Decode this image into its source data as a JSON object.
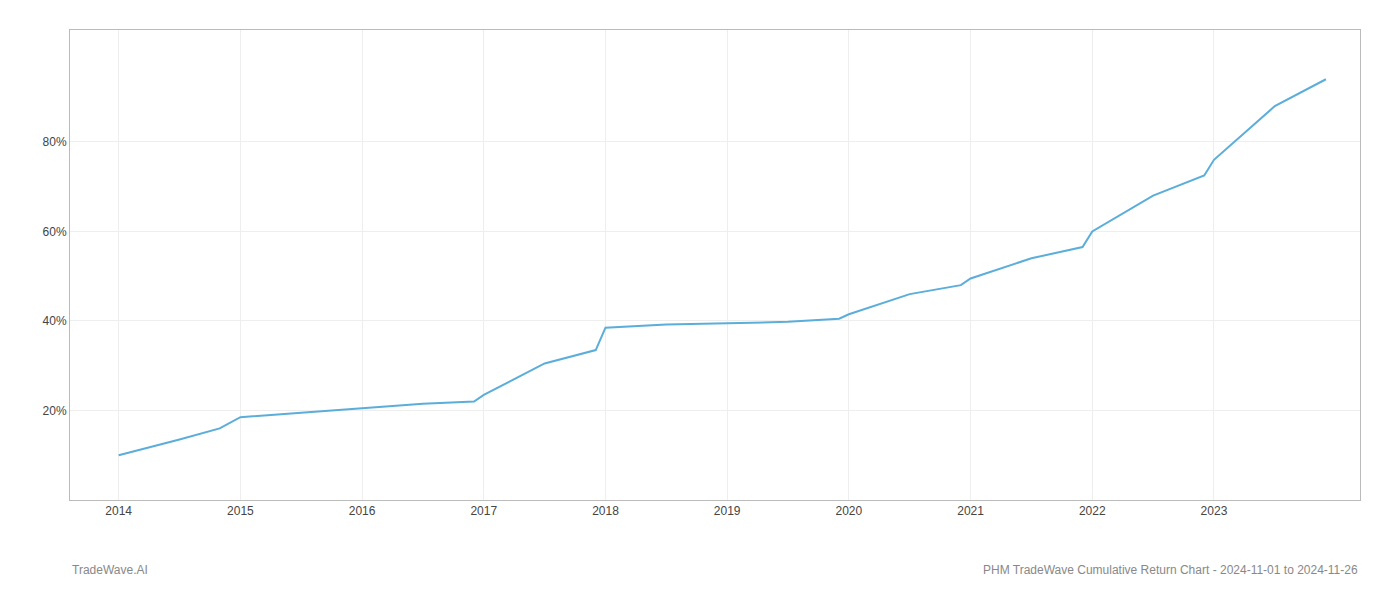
{
  "chart_data": {
    "type": "line",
    "x": [
      2014.0,
      2014.5,
      2014.83,
      2015.0,
      2015.5,
      2015.92,
      2016.0,
      2016.5,
      2016.92,
      2017.0,
      2017.5,
      2017.92,
      2018.0,
      2018.5,
      2018.92,
      2019.0,
      2019.5,
      2019.92,
      2020.0,
      2020.5,
      2020.92,
      2021.0,
      2021.5,
      2021.92,
      2022.0,
      2022.5,
      2022.92,
      2023.0,
      2023.5,
      2023.92
    ],
    "values": [
      10.0,
      13.5,
      16.0,
      18.5,
      19.5,
      20.2,
      20.5,
      21.5,
      22.0,
      23.5,
      30.5,
      33.5,
      38.5,
      39.2,
      39.5,
      39.5,
      39.8,
      40.5,
      41.5,
      46.0,
      48.0,
      49.5,
      54.0,
      56.5,
      60.0,
      68.0,
      72.5,
      76.0,
      88.0,
      94.0
    ],
    "color": "#5badda",
    "xlim": [
      2013.6,
      2024.2
    ],
    "xticks": [
      2014,
      2015,
      2016,
      2017,
      2018,
      2019,
      2020,
      2021,
      2022,
      2023
    ],
    "ylim": [
      0,
      105
    ],
    "yticks": [
      {
        "value": 20,
        "label": "20%"
      },
      {
        "value": 40,
        "label": "40%"
      },
      {
        "value": 60,
        "label": "60%"
      },
      {
        "value": 80,
        "label": "80%"
      }
    ],
    "grid": true,
    "annotations": [
      "TradeWave.AI",
      "PHM TradeWave Cumulative Return Chart - 2024-11-01 to 2024-11-26"
    ]
  }
}
